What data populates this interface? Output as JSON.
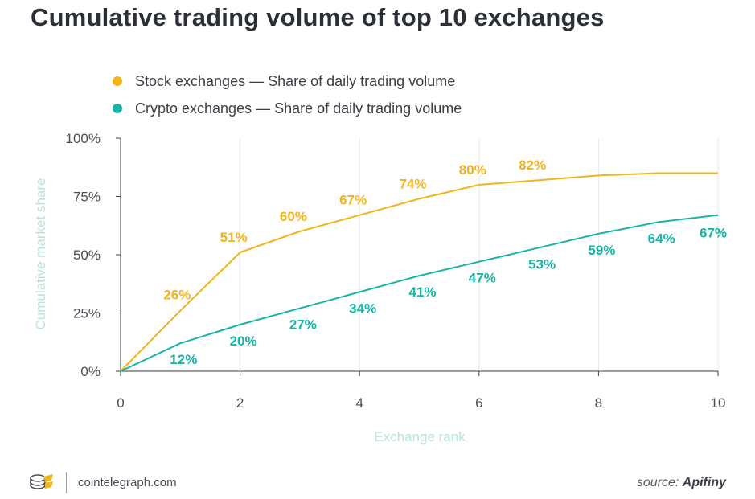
{
  "title": "Cumulative trading volume of top 10 exchanges",
  "legend": [
    {
      "label": "Stock exchanges — Share of daily trading volume",
      "color": "#f0b51d"
    },
    {
      "label": "Crypto exchanges — Share of daily trading volume",
      "color": "#18b4a5"
    }
  ],
  "chart_data": {
    "type": "line",
    "title": "Cumulative trading volume of top 10 exchanges",
    "xlabel": "Exchange rank",
    "ylabel": "Cumulative market share",
    "xlim": [
      0,
      10
    ],
    "ylim": [
      0,
      100
    ],
    "x_ticks": [
      "0",
      "2",
      "4",
      "6",
      "8",
      "10"
    ],
    "y_ticks": [
      "0%",
      "25%",
      "50%",
      "75%",
      "100%"
    ],
    "grid": "vertical",
    "legend_position": "top-left",
    "series": [
      {
        "name": "Stock exchanges — Share of daily trading volume",
        "color": "#f0b51d",
        "x": [
          0,
          1,
          2,
          3,
          4,
          5,
          6,
          7,
          8,
          9,
          10
        ],
        "y": [
          0,
          26,
          51,
          60,
          67,
          74,
          80,
          82,
          84,
          85,
          85
        ],
        "labels": [
          "",
          "26%",
          "51%",
          "60%",
          "67%",
          "74%",
          "80%",
          "82%",
          "",
          "",
          ""
        ]
      },
      {
        "name": "Crypto exchanges — Share of daily trading volume",
        "color": "#18b4a5",
        "x": [
          0,
          1,
          2,
          3,
          4,
          5,
          6,
          7,
          8,
          9,
          10
        ],
        "y": [
          0,
          12,
          20,
          27,
          34,
          41,
          47,
          53,
          59,
          64,
          67
        ],
        "labels": [
          "",
          "12%",
          "20%",
          "27%",
          "34%",
          "41%",
          "47%",
          "53%",
          "59%",
          "64%",
          "67%"
        ]
      }
    ]
  },
  "footer": {
    "site": "cointelegraph.com",
    "source_label": "source:",
    "source_name": "Apifiny"
  }
}
